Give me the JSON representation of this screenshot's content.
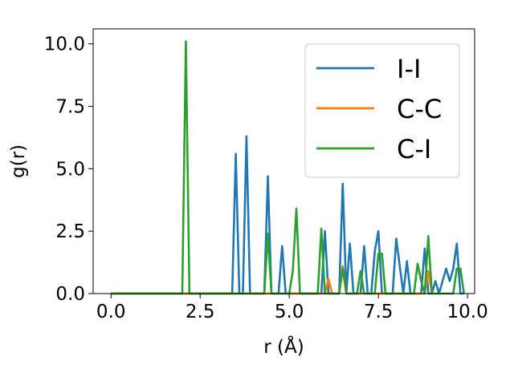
{
  "chart_data": {
    "type": "line",
    "title": "",
    "xlabel": "r (Å)",
    "ylabel": "g(r)",
    "xlim": [
      -0.5,
      10.2
    ],
    "ylim": [
      0,
      10.6
    ],
    "xticks": [
      0.0,
      2.5,
      5.0,
      7.5,
      10.0
    ],
    "yticks": [
      0.0,
      2.5,
      5.0,
      7.5,
      10.0
    ],
    "xtick_labels": [
      "0.0",
      "2.5",
      "5.0",
      "7.5",
      "10.0"
    ],
    "ytick_labels": [
      "0.0",
      "2.5",
      "5.0",
      "7.5",
      "10.0"
    ],
    "grid": false,
    "legend_position": "top-right",
    "series": [
      {
        "name": "I-I",
        "color": "#1f77b4",
        "x": [
          0,
          3.4,
          3.5,
          3.6,
          3.7,
          3.8,
          3.9,
          4.3,
          4.4,
          4.5,
          4.7,
          4.8,
          4.9,
          5.9,
          6.0,
          6.1,
          6.2,
          6.4,
          6.5,
          6.6,
          6.7,
          6.8,
          6.9,
          7.0,
          7.1,
          7.2,
          7.3,
          7.4,
          7.5,
          7.6,
          7.8,
          7.9,
          8.0,
          8.2,
          8.3,
          8.4,
          8.6,
          8.7,
          8.8,
          8.9,
          9.0,
          9.1,
          9.2,
          9.3,
          9.4,
          9.5,
          9.6,
          9.7,
          9.8,
          9.9
        ],
        "y": [
          0,
          0,
          5.6,
          0,
          0,
          6.3,
          0,
          0,
          4.7,
          0,
          0,
          1.9,
          0,
          0,
          2.5,
          0,
          0,
          0,
          4.4,
          0,
          2.0,
          0,
          0,
          0,
          1.9,
          0,
          0,
          1.7,
          2.5,
          0,
          0,
          0,
          2.2,
          0,
          1.3,
          0,
          0,
          0,
          1.8,
          0,
          0,
          0.5,
          0,
          0.5,
          1.0,
          0.5,
          1.0,
          2.0,
          0,
          0
        ]
      },
      {
        "name": "C-C",
        "color": "#ff7f0e",
        "x": [
          0,
          6.0,
          6.1,
          6.2,
          6.3,
          6.4,
          6.5,
          6.6,
          6.7,
          8.8,
          8.9,
          9.0
        ],
        "y": [
          0,
          0,
          0.6,
          0,
          0,
          0,
          1.1,
          0,
          0,
          0,
          0.9,
          0
        ]
      },
      {
        "name": "C-I",
        "color": "#2ca02c",
        "x": [
          0,
          2.0,
          2.1,
          2.2,
          4.3,
          4.4,
          4.5,
          5.0,
          5.1,
          5.2,
          5.3,
          5.8,
          5.9,
          6.0,
          6.4,
          6.5,
          6.6,
          6.9,
          7.0,
          7.1,
          7.4,
          7.5,
          7.6,
          7.7,
          8.5,
          8.6,
          8.7,
          8.8,
          8.9,
          9.0,
          9.5,
          9.6,
          9.7,
          9.8,
          9.9
        ],
        "y": [
          0,
          0,
          10.1,
          0,
          0,
          2.4,
          0,
          0,
          0.9,
          3.4,
          0,
          0,
          2.6,
          0,
          0,
          1.0,
          0,
          0,
          0.9,
          0,
          0,
          1.6,
          1.6,
          0,
          0,
          1.2,
          0.5,
          0,
          2.3,
          0,
          0,
          0,
          1.0,
          1.0,
          0
        ]
      }
    ]
  }
}
